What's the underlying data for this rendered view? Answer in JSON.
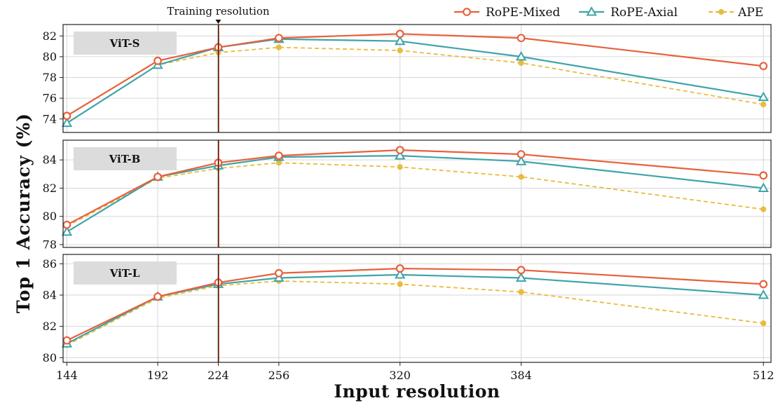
{
  "chart_data": {
    "type": "line",
    "title": "",
    "xlabel": "Input resolution",
    "ylabel": "Top 1 Accuracy (%)",
    "x": [
      144,
      192,
      224,
      256,
      320,
      384,
      512
    ],
    "x_tick_labels": [
      "144",
      "192",
      "224",
      "256",
      "320",
      "384",
      "512"
    ],
    "xlim": [
      142,
      516
    ],
    "grid": true,
    "legend_placement": "top-right",
    "series_meta": [
      {
        "name": "RoPE-Mixed",
        "color": "#e8603c",
        "marker": "circle",
        "line_style": "solid"
      },
      {
        "name": "RoPE-Axial",
        "color": "#3fa4a8",
        "marker": "triangle",
        "line_style": "solid"
      },
      {
        "name": "APE",
        "color": "#e8bc3c",
        "marker": "dot",
        "line_style": "dashed"
      }
    ],
    "annotation": {
      "text": "Training resolution",
      "x": 224
    },
    "panels": [
      {
        "label": "ViT-S",
        "ylim": [
          72.7,
          83.1
        ],
        "yticks": [
          74,
          76,
          78,
          80,
          82
        ],
        "series": [
          {
            "name": "RoPE-Mixed",
            "values": [
              74.3,
              79.6,
              80.9,
              81.8,
              82.2,
              81.8,
              79.1
            ]
          },
          {
            "name": "RoPE-Axial",
            "values": [
              73.6,
              79.2,
              80.9,
              81.7,
              81.5,
              80.0,
              76.1
            ]
          },
          {
            "name": "APE",
            "values": [
              73.6,
              79.2,
              80.4,
              80.9,
              80.6,
              79.4,
              75.4
            ]
          }
        ]
      },
      {
        "label": "ViT-B",
        "ylim": [
          77.8,
          85.4
        ],
        "yticks": [
          78,
          80,
          82,
          84
        ],
        "series": [
          {
            "name": "RoPE-Mixed",
            "values": [
              79.4,
              82.8,
              83.8,
              84.3,
              84.7,
              84.4,
              82.9
            ]
          },
          {
            "name": "RoPE-Axial",
            "values": [
              78.9,
              82.8,
              83.6,
              84.2,
              84.3,
              83.9,
              82.0
            ]
          },
          {
            "name": "APE",
            "values": [
              79.3,
              82.7,
              83.4,
              83.8,
              83.5,
              82.8,
              80.5
            ]
          }
        ]
      },
      {
        "label": "ViT-L",
        "ylim": [
          79.7,
          86.6
        ],
        "yticks": [
          80,
          82,
          84,
          86
        ],
        "series": [
          {
            "name": "RoPE-Mixed",
            "values": [
              81.1,
              83.9,
              84.8,
              85.4,
              85.7,
              85.6,
              84.7
            ]
          },
          {
            "name": "RoPE-Axial",
            "values": [
              80.9,
              83.9,
              84.7,
              85.1,
              85.3,
              85.1,
              84.0
            ]
          },
          {
            "name": "APE",
            "values": [
              80.8,
              83.8,
              84.6,
              84.9,
              84.7,
              84.2,
              82.2
            ]
          }
        ]
      }
    ]
  }
}
